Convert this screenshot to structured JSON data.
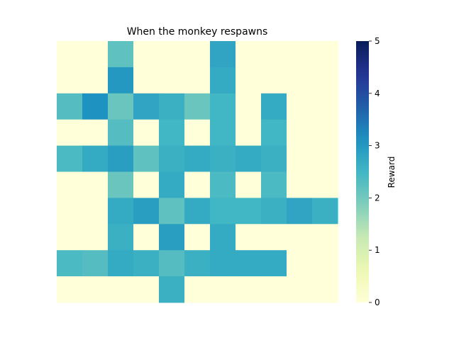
{
  "chart_data": {
    "type": "heatmap",
    "title": "When the monkey respawns",
    "xlabel": "",
    "ylabel": "",
    "rows": 10,
    "cols": 11,
    "values": [
      [
        0.0,
        0.0,
        2.2,
        0.0,
        0.0,
        0.0,
        2.8,
        0.0,
        0.0,
        0.0,
        0.0
      ],
      [
        0.0,
        0.0,
        3.0,
        0.0,
        0.0,
        0.0,
        2.7,
        0.0,
        0.0,
        0.0,
        0.0
      ],
      [
        2.3,
        3.1,
        2.1,
        2.8,
        2.6,
        2.1,
        2.5,
        0.0,
        2.7,
        0.0,
        0.0
      ],
      [
        0.0,
        0.0,
        2.3,
        0.0,
        2.5,
        0.0,
        2.5,
        0.0,
        2.5,
        0.0,
        0.0
      ],
      [
        2.4,
        2.7,
        2.9,
        2.2,
        2.6,
        2.7,
        2.6,
        2.7,
        2.6,
        0.0,
        0.0
      ],
      [
        0.0,
        0.0,
        2.1,
        0.0,
        2.7,
        0.0,
        2.4,
        0.0,
        2.4,
        0.0,
        0.0
      ],
      [
        0.0,
        0.0,
        2.7,
        2.9,
        2.2,
        2.7,
        2.5,
        2.5,
        2.6,
        2.8,
        2.6
      ],
      [
        0.0,
        0.0,
        2.6,
        0.0,
        2.9,
        0.0,
        2.7,
        0.0,
        0.0,
        0.0,
        0.0
      ],
      [
        2.4,
        2.3,
        2.7,
        2.6,
        2.3,
        2.6,
        2.7,
        2.7,
        2.7,
        0.0,
        0.0
      ],
      [
        0.0,
        0.0,
        0.0,
        0.0,
        2.6,
        0.0,
        0.0,
        0.0,
        0.0,
        0.0,
        0.0
      ]
    ],
    "extra_row_note": "",
    "colormap": "YlGnBu",
    "vmin": 0,
    "vmax": 5,
    "colorbar": {
      "label": "Reward",
      "ticks": [
        "0",
        "1",
        "2",
        "3",
        "4",
        "5"
      ]
    }
  }
}
